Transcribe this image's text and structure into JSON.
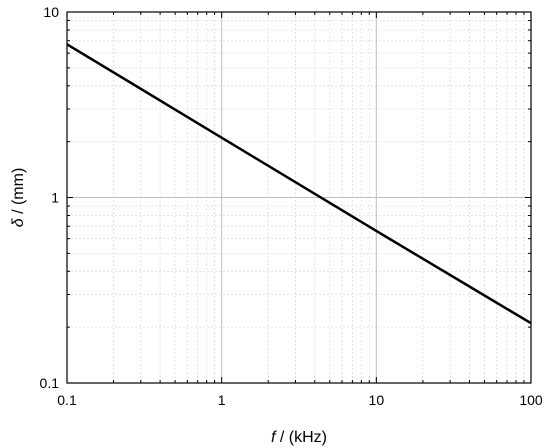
{
  "chart_data": {
    "type": "line",
    "title": "",
    "xscale": "log",
    "yscale": "log",
    "xlim": [
      0.1,
      100
    ],
    "ylim": [
      0.1,
      10
    ],
    "x_ticks": [
      "0.1",
      "1",
      "10",
      "100"
    ],
    "y_ticks": [
      "0.1",
      "1",
      "10"
    ],
    "xlabel": {
      "symbol": "f",
      "unit": " / (kHz)"
    },
    "ylabel": {
      "symbol": "δ",
      "unit": " / (mm)"
    },
    "grid": {
      "major": true,
      "minor": true
    },
    "legend": "none",
    "series": [
      {
        "x": [
          0.1,
          1,
          10,
          100
        ],
        "y": [
          6.7,
          2.1,
          0.66,
          0.21
        ],
        "color": "#000000"
      }
    ],
    "colors": {
      "major_grid": "#bfbfbf",
      "minor_grid": "#dcdcdc",
      "axis": "#000000",
      "line": "#000000"
    }
  }
}
